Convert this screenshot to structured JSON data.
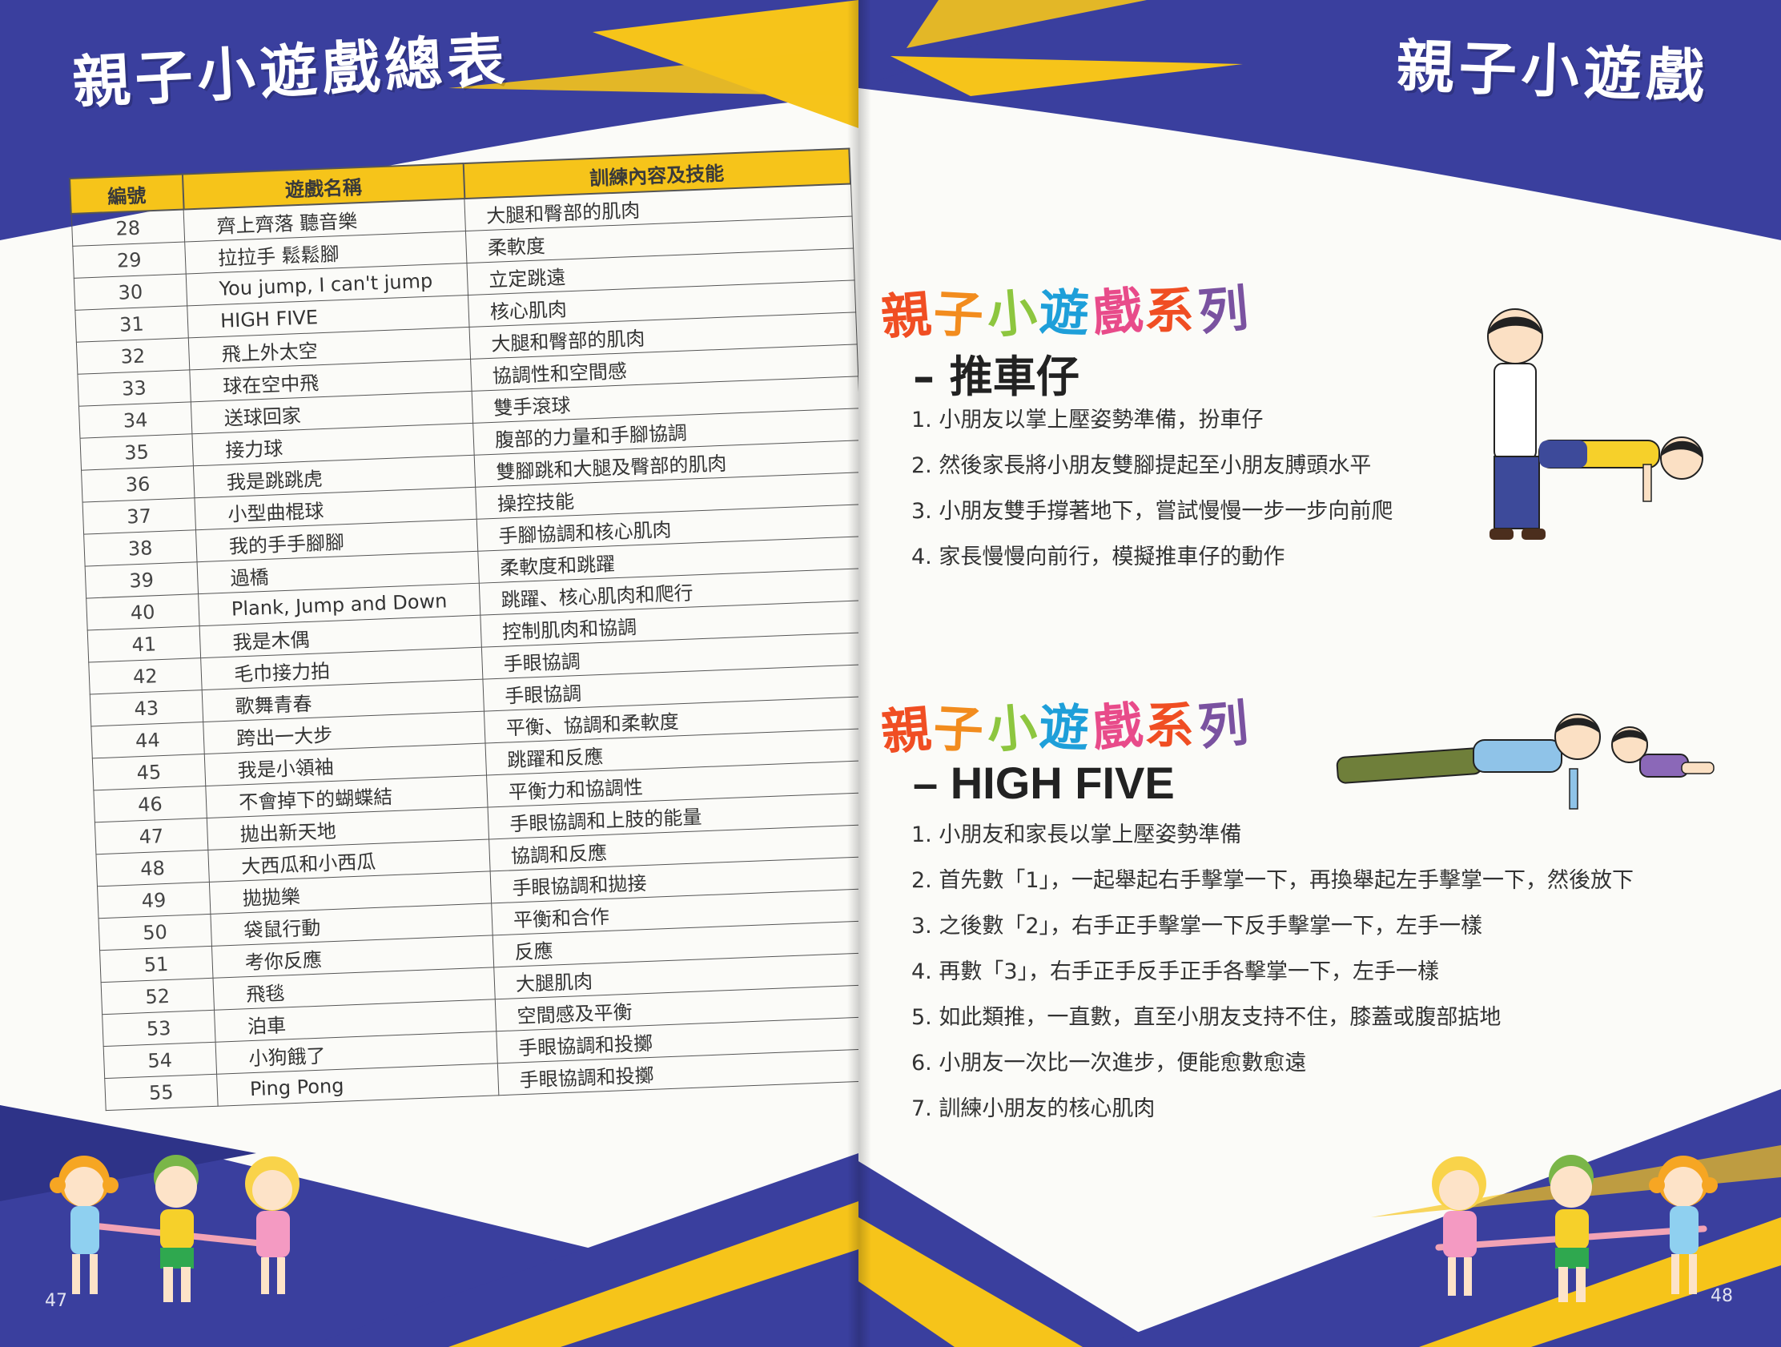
{
  "left_page": {
    "title": "親子小遊戲總表",
    "page_number": "47",
    "table": {
      "headers": [
        "編號",
        "遊戲名稱",
        "訓練內容及技能"
      ],
      "rows": [
        {
          "no": "28",
          "name": "齊上齊落 聽音樂",
          "skill": "大腿和臀部的肌肉"
        },
        {
          "no": "29",
          "name": "拉拉手 鬆鬆腳",
          "skill": "柔軟度"
        },
        {
          "no": "30",
          "name": "You jump, I can't jump",
          "skill": "立定跳遠"
        },
        {
          "no": "31",
          "name": "HIGH FIVE",
          "skill": "核心肌肉"
        },
        {
          "no": "32",
          "name": "飛上外太空",
          "skill": "大腿和臀部的肌肉"
        },
        {
          "no": "33",
          "name": "球在空中飛",
          "skill": "協調性和空間感"
        },
        {
          "no": "34",
          "name": "送球回家",
          "skill": "雙手滾球"
        },
        {
          "no": "35",
          "name": "接力球",
          "skill": "腹部的力量和手腳協調"
        },
        {
          "no": "36",
          "name": "我是跳跳虎",
          "skill": "雙腳跳和大腿及臀部的肌肉"
        },
        {
          "no": "37",
          "name": "小型曲棍球",
          "skill": "操控技能"
        },
        {
          "no": "38",
          "name": "我的手手腳腳",
          "skill": "手腳協調和核心肌肉"
        },
        {
          "no": "39",
          "name": "過橋",
          "skill": "柔軟度和跳躍"
        },
        {
          "no": "40",
          "name": "Plank, Jump and Down",
          "skill": "跳躍、核心肌肉和爬行"
        },
        {
          "no": "41",
          "name": "我是木偶",
          "skill": "控制肌肉和協調"
        },
        {
          "no": "42",
          "name": "毛巾接力拍",
          "skill": "手眼協調"
        },
        {
          "no": "43",
          "name": "歌舞青春",
          "skill": "手眼協調"
        },
        {
          "no": "44",
          "name": "跨出一大步",
          "skill": "平衡、協調和柔軟度"
        },
        {
          "no": "45",
          "name": "我是小領袖",
          "skill": "跳躍和反應"
        },
        {
          "no": "46",
          "name": "不會掉下的蝴蝶結",
          "skill": "平衡力和協調性"
        },
        {
          "no": "47",
          "name": "拋出新天地",
          "skill": "手眼協調和上肢的能量"
        },
        {
          "no": "48",
          "name": "大西瓜和小西瓜",
          "skill": "協調和反應"
        },
        {
          "no": "49",
          "name": "拋拋樂",
          "skill": "手眼協調和拋接"
        },
        {
          "no": "50",
          "name": "袋鼠行動",
          "skill": "平衡和合作"
        },
        {
          "no": "51",
          "name": "考你反應",
          "skill": "反應"
        },
        {
          "no": "52",
          "name": "飛毯",
          "skill": "大腿肌肉"
        },
        {
          "no": "53",
          "name": "泊車",
          "skill": "空間感及平衡"
        },
        {
          "no": "54",
          "name": "小狗餓了",
          "skill": "手眼協調和投擲"
        },
        {
          "no": "55",
          "name": "Ping Pong",
          "skill": "手眼協調和投擲"
        }
      ]
    }
  },
  "right_page": {
    "title": "親子小遊戲",
    "page_number": "48",
    "sections": [
      {
        "series_label": "親子小遊戲系列",
        "subtitle": "– 推車仔",
        "steps": [
          "1. 小朋友以掌上壓姿勢準備，扮車仔",
          "2. 然後家長將小朋友雙腳提起至小朋友膊頭水平",
          "3. 小朋友雙手撐著地下，嘗試慢慢一步一步向前爬",
          "4. 家長慢慢向前行，模擬推車仔的動作"
        ]
      },
      {
        "series_label": "親子小遊戲系列",
        "subtitle": "– HIGH FIVE",
        "steps": [
          "1. 小朋友和家長以掌上壓姿勢準備",
          "2. 首先數「1」，一起舉起右手擊掌一下，再換舉起左手擊掌一下，然後放下",
          "3. 之後數「2」，右手正手擊掌一下反手擊掌一下，左手一樣",
          "4. 再數「3」，右手正手反手正手各擊掌一下，左手一樣",
          "5. 如此類推，一直數，直至小朋友支持不住，膝蓋或腹部掂地",
          "6. 小朋友一次比一次進步，便能愈數愈遠",
          "7. 訓練小朋友的核心肌肉"
        ]
      }
    ]
  },
  "colors": {
    "navy": "#3a3f9e",
    "yellow": "#f6c41a",
    "table_header": "#f6c41a",
    "series_colors": [
      "#f04e23",
      "#f28c1e",
      "#8dc63f",
      "#1e9fd9",
      "#e84b8a",
      "#f04e23",
      "#7a52a0"
    ]
  },
  "icons": [
    "kids-tug-of-war-illustration",
    "father-pushing-child-wheelbarrow-illustration",
    "father-child-plank-high-five-illustration"
  ]
}
